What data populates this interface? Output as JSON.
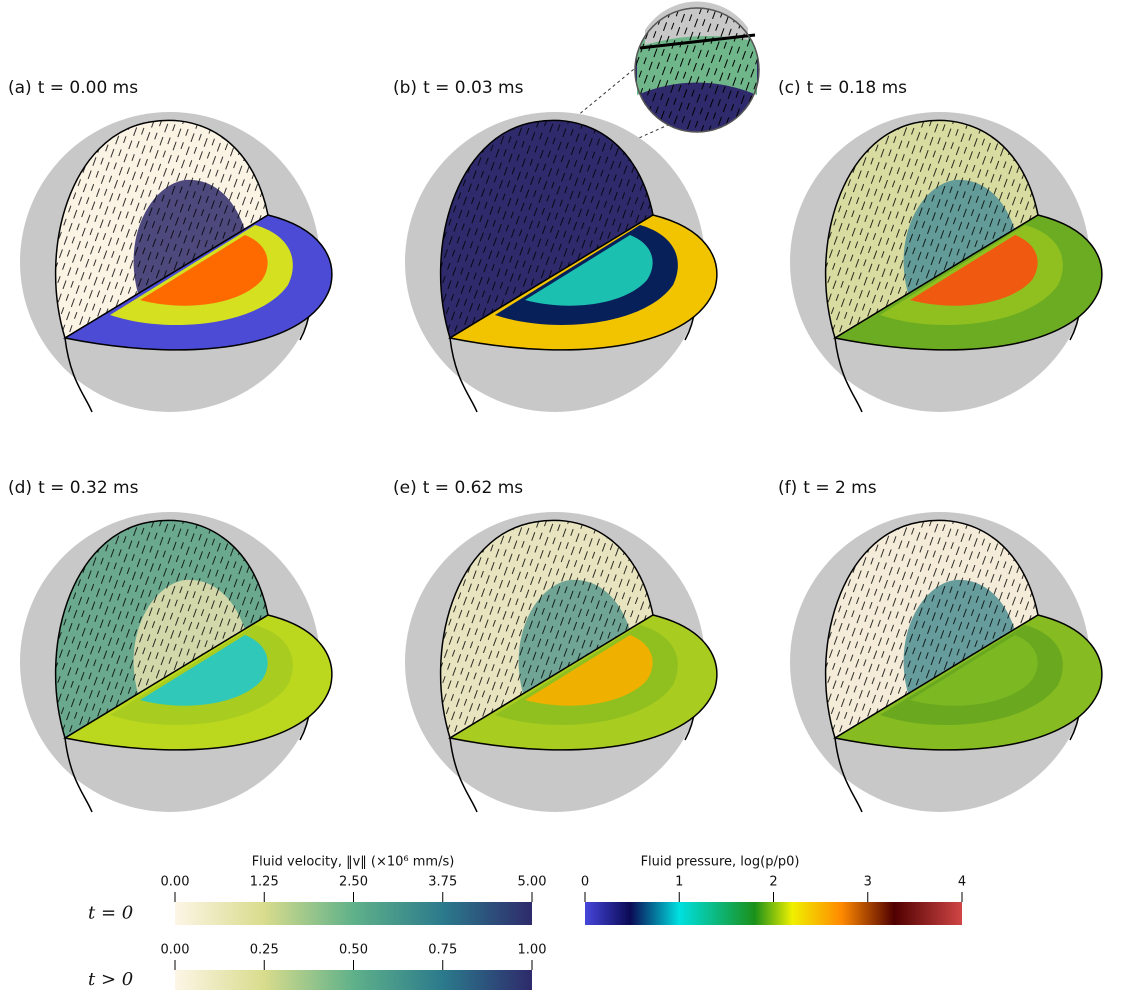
{
  "panels": [
    {
      "label": "(a)",
      "time": "t = 0.00 ms"
    },
    {
      "label": "(b)",
      "time": "t = 0.03 ms"
    },
    {
      "label": "(c)",
      "time": "t = 0.18 ms"
    },
    {
      "label": "(d)",
      "time": "t = 0.32 ms"
    },
    {
      "label": "(e)",
      "time": "t = 0.62 ms"
    },
    {
      "label": "(f)",
      "time": "t = 2 ms"
    }
  ],
  "colorbars": {
    "velocity": {
      "title": "Fluid velocity, ‖v‖ (×10⁶ mm/s)",
      "rows": [
        {
          "label": "t = 0",
          "range": [
            0,
            5
          ],
          "ticks": [
            {
              "value": 0,
              "label": "0.00"
            },
            {
              "value": 1.25,
              "label": "1.25"
            },
            {
              "value": 2.5,
              "label": "2.50"
            },
            {
              "value": 3.75,
              "label": "3.75"
            },
            {
              "value": 5,
              "label": "5.00"
            }
          ]
        },
        {
          "label": "t > 0",
          "range": [
            0,
            1
          ],
          "ticks": [
            {
              "value": 0,
              "label": "0.00"
            },
            {
              "value": 0.25,
              "label": "0.25"
            },
            {
              "value": 0.5,
              "label": "0.50"
            },
            {
              "value": 0.75,
              "label": "0.75"
            },
            {
              "value": 1,
              "label": "1.00"
            }
          ]
        }
      ]
    },
    "pressure": {
      "title": "Fluid pressure, log(p/p0)",
      "range": [
        0,
        4
      ],
      "ticks": [
        0,
        1,
        2,
        3,
        4
      ]
    }
  }
}
